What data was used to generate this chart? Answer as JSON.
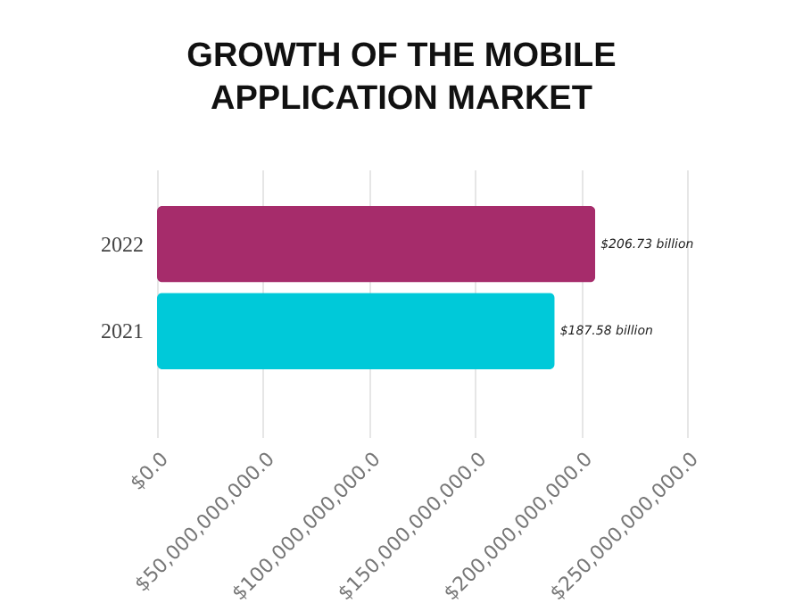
{
  "chart_data": {
    "type": "bar",
    "orientation": "horizontal",
    "title": "GROWTH OF THE MOBILE APPLICATION MARKET",
    "categories": [
      "2022",
      "2021"
    ],
    "series": [
      {
        "colors": [
          "#a62c6b",
          "#00c9d9"
        ],
        "values": [
          206730000000,
          187580000000
        ],
        "value_labels": [
          "$206.73 billion",
          "$187.58 billion"
        ]
      }
    ],
    "xlim": [
      0,
      250000000000
    ],
    "xticks": [
      {
        "value": 0,
        "label": "$0.0"
      },
      {
        "value": 50000000000,
        "label": "$50,000,000,000.0"
      },
      {
        "value": 100000000000,
        "label": "$100,000,000,000.0"
      },
      {
        "value": 150000000000,
        "label": "$150,000,000,000.0"
      },
      {
        "value": 200000000000,
        "label": "$200,000,000,000.0"
      },
      {
        "value": 250000000000,
        "label": "$250,000,000,000.0"
      }
    ],
    "grid": "x"
  }
}
